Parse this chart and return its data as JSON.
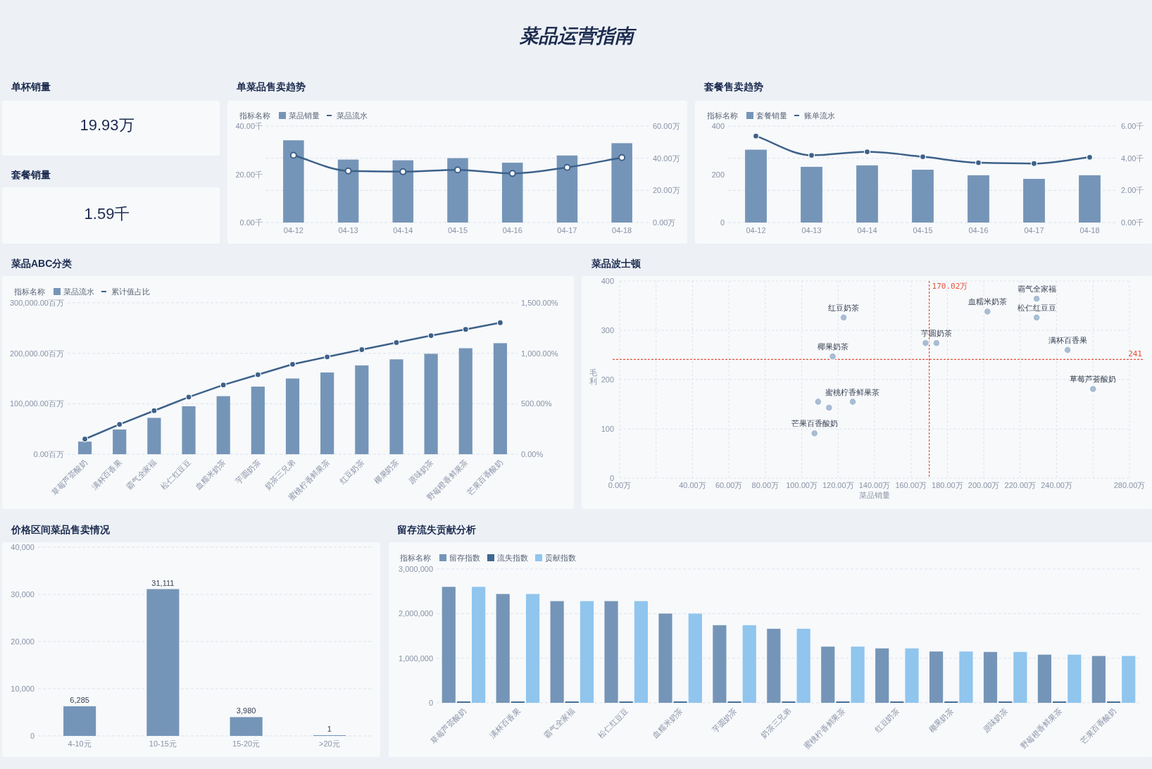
{
  "chart_data": [
    {
      "type": "other",
      "title": "菜品运营指南"
    },
    {
      "type": "other",
      "title": "单杯销量",
      "annotations": [
        "19.93万"
      ]
    },
    {
      "type": "other",
      "title": "套餐销量",
      "annotations": [
        "1.59千"
      ]
    },
    {
      "type": "bar",
      "title": "单菜品售卖趋势",
      "legend_title": "指标名称",
      "legend": "top left",
      "categories": [
        "04-12",
        "04-13",
        "04-14",
        "04-15",
        "04-16",
        "04-17",
        "04-18"
      ],
      "series": [
        {
          "name": "菜品销量",
          "type": "bar",
          "color": "#7595b8",
          "values": [
            34.1,
            26.1,
            25.8,
            26.7,
            24.8,
            27.8,
            32.9
          ]
        },
        {
          "name": "菜品流水",
          "type": "line",
          "axis": "y2",
          "color": "#3d6189",
          "values": [
            41.8,
            32.1,
            31.6,
            32.7,
            30.5,
            34.3,
            40.4
          ]
        }
      ],
      "ylim": [
        0,
        40
      ],
      "yticks": [
        {
          "value": 0,
          "label": "0.00千"
        },
        {
          "value": 20,
          "label": "20.00千"
        },
        {
          "value": 40,
          "label": "40.00千"
        }
      ],
      "y2lim": [
        0,
        60
      ],
      "y2ticks": [
        {
          "value": 0,
          "label": "0.00万"
        },
        {
          "value": 20,
          "label": "20.00万"
        },
        {
          "value": 40,
          "label": "40.00万"
        },
        {
          "value": 60,
          "label": "60.00万"
        }
      ],
      "grid": "y2",
      "marker": "circle"
    },
    {
      "type": "bar",
      "title": "套餐售卖趋势",
      "legend_title": "指标名称",
      "legend": "top left",
      "categories": [
        "04-12",
        "04-13",
        "04-14",
        "04-15",
        "04-16",
        "04-17",
        "04-18"
      ],
      "series": [
        {
          "name": "套餐销量",
          "type": "bar",
          "color": "#7595b8",
          "values": [
            302,
            231,
            237,
            219,
            196,
            181,
            196
          ]
        },
        {
          "name": "账单流水",
          "type": "line",
          "axis": "y2",
          "color": "#3d6189",
          "values": [
            5.38,
            4.18,
            4.4,
            4.09,
            3.72,
            3.67,
            4.06
          ]
        }
      ],
      "ylim": [
        0,
        400
      ],
      "yticks": [
        0,
        200,
        400
      ],
      "y2lim": [
        0,
        6
      ],
      "y2ticks": [
        {
          "value": 0,
          "label": "0.00千"
        },
        {
          "value": 2,
          "label": "2.00千"
        },
        {
          "value": 4,
          "label": "4.00千"
        },
        {
          "value": 6,
          "label": "6.00千"
        }
      ],
      "grid": "y2",
      "marker": "circle"
    },
    {
      "type": "bar",
      "title": "菜品ABC分类",
      "legend_title": "指标名称",
      "legend": "top left",
      "categories": [
        "草莓芦荟酸奶",
        "满杯百香果",
        "霸气全家福",
        "松仁红豆豆",
        "血糯米奶茶",
        "芋圆奶茶",
        "奶茶三兄弟",
        "蜜桃柠香鲜果茶",
        "红豆奶茶",
        "椰果奶茶",
        "原味奶茶",
        "野莓橙香鲜果茶",
        "芒果百香酸奶"
      ],
      "series": [
        {
          "name": "菜品流水",
          "type": "bar",
          "color": "#7595b8",
          "values": [
            25000,
            49000,
            72000,
            95000,
            115000,
            134000,
            150000,
            162000,
            176000,
            188000,
            199000,
            210000,
            220000
          ]
        },
        {
          "name": "累计值占比",
          "type": "line",
          "axis": "y2",
          "color": "#3d6189",
          "values": [
            150,
            296,
            431,
            566,
            686,
            788,
            891,
            964,
            1036,
            1106,
            1175,
            1237,
            1303
          ]
        }
      ],
      "ylim": [
        0,
        300000
      ],
      "yticks": [
        {
          "value": 0,
          "label": "0.00百万"
        },
        {
          "value": 100000,
          "label": "100,000.00百万"
        },
        {
          "value": 200000,
          "label": "200,000.00百万"
        },
        {
          "value": 300000,
          "label": "300,000.00百万"
        }
      ],
      "y2lim": [
        0,
        1500
      ],
      "y2ticks": [
        {
          "value": 0,
          "label": "0.00%"
        },
        {
          "value": 500,
          "label": "500.00%"
        },
        {
          "value": 1000,
          "label": "1,000.00%"
        },
        {
          "value": 1500,
          "label": "1,500.00%"
        }
      ],
      "grid": "y",
      "marker": "circle"
    },
    {
      "type": "scatter",
      "title": "菜品波士顿",
      "xlabel": "菜品销量",
      "ylabel": "毛利",
      "xlim": [
        0,
        280
      ],
      "xticks": [
        {
          "value": 0,
          "label": "0.00万"
        },
        {
          "value": 20,
          "label": null
        },
        {
          "value": 40,
          "label": "40.00万"
        },
        {
          "value": 60,
          "label": "60.00万"
        },
        {
          "value": 80,
          "label": "80.00万"
        },
        {
          "value": 100,
          "label": "100.00万"
        },
        {
          "value": 120,
          "label": "120.00万"
        },
        {
          "value": 140,
          "label": "140.00万"
        },
        {
          "value": 160,
          "label": "160.00万"
        },
        {
          "value": 180,
          "label": "180.00万"
        },
        {
          "value": 200,
          "label": "200.00万"
        },
        {
          "value": 220,
          "label": "220.00万"
        },
        {
          "value": 240,
          "label": "240.00万"
        },
        {
          "value": 260,
          "label": null
        },
        {
          "value": 280,
          "label": "280.00万"
        }
      ],
      "ylim": [
        0,
        400
      ],
      "yticks": [
        0,
        100,
        200,
        300,
        400
      ],
      "grid": true,
      "marker": "circle",
      "ref_lines": [
        {
          "axis": "x",
          "value": 170.02,
          "label": "170.02万",
          "color": "#e8503a",
          "line_style": "dashed"
        },
        {
          "axis": "y",
          "value": 241,
          "label": "241",
          "color": "#e8503a",
          "line_style": "dashed"
        }
      ],
      "series": [
        {
          "color": "#a9bdd3",
          "x": [
            123,
            117,
            168,
            174,
            202,
            229,
            229,
            246,
            260,
            128,
            109,
            115,
            107
          ],
          "values": [
            326,
            247,
            274,
            274,
            338,
            364,
            326,
            260,
            181,
            155,
            155,
            143,
            91
          ],
          "value_labels": [
            "红豆奶茶",
            "椰果奶茶",
            null,
            "芋圆奶茶",
            "血糯米奶茶",
            "霸气全家福",
            "松仁红豆豆",
            "满杯百香果",
            "草莓芦荟酸奶",
            "蜜桃柠香鲜果茶",
            null,
            null,
            "芒果百香酸奶"
          ]
        }
      ]
    },
    {
      "type": "bar",
      "title": "价格区间菜品售卖情况",
      "categories": [
        "4-10元",
        "10-15元",
        "15-20元",
        ">20元"
      ],
      "values": [
        6285,
        31111,
        3980,
        1
      ],
      "value_labels": [
        "6,285",
        "31,111",
        "3,980",
        "1"
      ],
      "color": "#7595b8",
      "ylim": [
        0,
        40000
      ],
      "yticks": [
        0,
        {
          "value": 10000,
          "label": "10,000"
        },
        {
          "value": 20000,
          "label": "20,000"
        },
        {
          "value": 30000,
          "label": "30,000"
        },
        {
          "value": 40000,
          "label": "40,000"
        }
      ],
      "grid": "y"
    },
    {
      "type": "bar",
      "title": "留存流失贡献分析",
      "legend_title": "指标名称",
      "legend": "top left",
      "categories": [
        "草莓芦荟酸奶",
        "满杯百香果",
        "霸气全家福",
        "松仁红豆豆",
        "血糯米奶茶",
        "芋圆奶茶",
        "奶茶三兄弟",
        "蜜桃柠香鲜果茶",
        "红豆奶茶",
        "椰果奶茶",
        "原味奶茶",
        "野莓橙香鲜果茶",
        "芒果百香酸奶"
      ],
      "series": [
        {
          "name": "留存指数",
          "color": "#7595b8",
          "values": [
            2600000,
            2440000,
            2280000,
            2280000,
            2000000,
            1740000,
            1660000,
            1260000,
            1220000,
            1150000,
            1140000,
            1080000,
            1050000
          ]
        },
        {
          "name": "流失指数",
          "color": "#3e6891",
          "values": [
            30000,
            30000,
            30000,
            30000,
            30000,
            30000,
            30000,
            30000,
            30000,
            30000,
            30000,
            30000,
            30000
          ]
        },
        {
          "name": "贡献指数",
          "color": "#90c5ee",
          "values": [
            2600000,
            2440000,
            2280000,
            2280000,
            2000000,
            1740000,
            1660000,
            1260000,
            1220000,
            1150000,
            1140000,
            1080000,
            1050000
          ]
        }
      ],
      "ylim": [
        0,
        3000000
      ],
      "yticks": [
        0,
        {
          "value": 1000000,
          "label": "1,000,000"
        },
        {
          "value": 2000000,
          "label": "2,000,000"
        },
        {
          "value": 3000000,
          "label": "3,000,000"
        }
      ],
      "grid": "y"
    }
  ]
}
